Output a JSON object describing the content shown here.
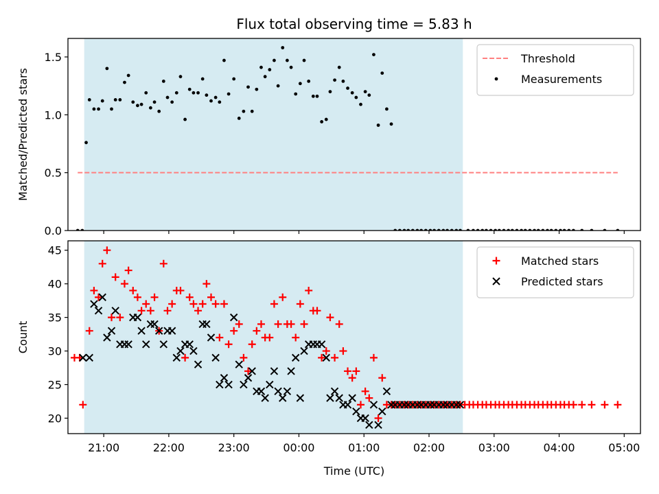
{
  "figure": {
    "title": "Flux total observing time = 5.83 h"
  },
  "chart_data": [
    {
      "type": "scatter",
      "panel": "top",
      "ylabel": "Matched/Predicted stars",
      "xlabel": "",
      "xlim": [
        20.45,
        29.25
      ],
      "ylim": [
        0.0,
        1.66
      ],
      "yticks": [
        0.0,
        0.5,
        1.0,
        1.5
      ],
      "ytick_labels": [
        "0.0",
        "0.5",
        "1.0",
        "1.5"
      ],
      "grid": false,
      "legend": {
        "placement": "top-right"
      },
      "shaded_span": {
        "from": 20.7,
        "to": 26.52,
        "color": "#add8e6"
      },
      "threshold": {
        "name": "Threshold",
        "y": 0.5,
        "x_from": 20.6,
        "x_to": 28.9,
        "color": "#ff8080"
      },
      "series": [
        {
          "name": "Measurements",
          "marker": "dot",
          "color": "#000000",
          "x": [
            20.6,
            20.67,
            20.73,
            20.78,
            20.85,
            20.92,
            20.98,
            21.05,
            21.12,
            21.18,
            21.25,
            21.32,
            21.38,
            21.45,
            21.52,
            21.58,
            21.65,
            21.72,
            21.78,
            21.85,
            21.92,
            21.98,
            22.05,
            22.12,
            22.18,
            22.25,
            22.32,
            22.38,
            22.45,
            22.52,
            22.58,
            22.65,
            22.72,
            22.78,
            22.85,
            22.92,
            23.0,
            23.08,
            23.15,
            23.22,
            23.28,
            23.35,
            23.42,
            23.48,
            23.55,
            23.62,
            23.68,
            23.75,
            23.82,
            23.88,
            23.95,
            24.02,
            24.08,
            24.15,
            24.22,
            24.28,
            24.35,
            24.42,
            24.48,
            24.55,
            24.62,
            24.68,
            24.75,
            24.82,
            24.88,
            24.95,
            25.02,
            25.08,
            25.15,
            25.22,
            25.28,
            25.35,
            25.42,
            25.48,
            25.55,
            25.62,
            25.68,
            25.75,
            25.82,
            25.88,
            25.95,
            26.02,
            26.08,
            26.15,
            26.22,
            26.28,
            26.35,
            26.42,
            26.48,
            26.6,
            26.68,
            26.75,
            26.82,
            26.88,
            26.95,
            27.02,
            27.08,
            27.15,
            27.22,
            27.28,
            27.35,
            27.42,
            27.48,
            27.55,
            27.62,
            27.68,
            27.75,
            27.82,
            27.88,
            27.95,
            28.02,
            28.08,
            28.15,
            28.22,
            28.35,
            28.5,
            28.7,
            28.9
          ],
          "y": [
            0.0,
            0.0,
            0.76,
            1.13,
            1.05,
            1.05,
            1.12,
            1.4,
            1.05,
            1.13,
            1.13,
            1.28,
            1.34,
            1.11,
            1.08,
            1.09,
            1.19,
            1.06,
            1.11,
            1.03,
            1.29,
            1.15,
            1.11,
            1.19,
            1.33,
            0.96,
            1.22,
            1.19,
            1.19,
            1.31,
            1.17,
            1.12,
            1.15,
            1.11,
            1.47,
            1.18,
            1.31,
            0.97,
            1.03,
            1.24,
            1.03,
            1.22,
            1.41,
            1.33,
            1.39,
            1.47,
            1.25,
            1.58,
            1.47,
            1.41,
            1.18,
            1.27,
            1.47,
            1.29,
            1.16,
            1.16,
            0.94,
            0.96,
            1.2,
            1.3,
            1.41,
            1.29,
            1.23,
            1.19,
            1.15,
            1.09,
            1.2,
            1.17,
            1.52,
            0.91,
            1.36,
            1.05,
            0.92,
            0.0,
            0.0,
            0.0,
            0.0,
            0.0,
            0.0,
            0.0,
            0.0,
            0.0,
            0.0,
            0.0,
            0.0,
            0.0,
            0.0,
            0.0,
            0.0,
            0.0,
            0.0,
            0.0,
            0.0,
            0.0,
            0.0,
            0.0,
            0.0,
            0.0,
            0.0,
            0.0,
            0.0,
            0.0,
            0.0,
            0.0,
            0.0,
            0.0,
            0.0,
            0.0,
            0.0,
            0.0,
            0.0,
            0.0,
            0.0,
            0.0,
            0.0,
            0.0,
            0.0,
            0.0
          ]
        }
      ]
    },
    {
      "type": "scatter",
      "panel": "bottom",
      "ylabel": "Count",
      "xlabel": "Time (UTC)",
      "xlim": [
        20.45,
        29.25
      ],
      "ylim": [
        17.7,
        46.4
      ],
      "yticks": [
        20,
        25,
        30,
        35,
        40,
        45
      ],
      "ytick_labels": [
        "20",
        "25",
        "30",
        "35",
        "40",
        "45"
      ],
      "xticks": [
        21,
        22,
        23,
        24,
        25,
        26,
        27,
        28,
        29
      ],
      "xtick_labels": [
        "21:00",
        "22:00",
        "23:00",
        "00:00",
        "01:00",
        "02:00",
        "03:00",
        "04:00",
        "05:00"
      ],
      "grid": false,
      "legend": {
        "placement": "top-right"
      },
      "shaded_span": {
        "from": 20.7,
        "to": 26.52,
        "color": "#add8e6"
      },
      "series": [
        {
          "name": "Matched stars",
          "marker": "plus",
          "color": "#ff0000",
          "x": [
            20.55,
            20.63,
            20.68,
            20.78,
            20.85,
            20.92,
            20.98,
            21.05,
            21.12,
            21.18,
            21.25,
            21.32,
            21.38,
            21.45,
            21.52,
            21.58,
            21.65,
            21.72,
            21.78,
            21.85,
            21.92,
            21.98,
            22.05,
            22.12,
            22.18,
            22.25,
            22.32,
            22.38,
            22.45,
            22.52,
            22.58,
            22.65,
            22.72,
            22.78,
            22.85,
            22.92,
            23.0,
            23.08,
            23.15,
            23.22,
            23.28,
            23.35,
            23.42,
            23.48,
            23.55,
            23.62,
            23.68,
            23.75,
            23.82,
            23.88,
            23.95,
            24.02,
            24.08,
            24.15,
            24.22,
            24.28,
            24.35,
            24.42,
            24.48,
            24.55,
            24.62,
            24.68,
            24.75,
            24.82,
            24.88,
            24.95,
            25.02,
            25.08,
            25.15,
            25.22,
            25.28,
            25.35,
            25.42,
            25.48,
            25.55,
            25.62,
            25.68,
            25.75,
            25.82,
            25.88,
            25.95,
            26.02,
            26.08,
            26.15,
            26.22,
            26.28,
            26.35,
            26.42,
            26.48,
            26.55,
            26.62,
            26.68,
            26.75,
            26.82,
            26.88,
            26.95,
            27.02,
            27.08,
            27.15,
            27.22,
            27.28,
            27.35,
            27.42,
            27.48,
            27.55,
            27.62,
            27.68,
            27.75,
            27.82,
            27.88,
            27.95,
            28.02,
            28.08,
            28.15,
            28.22,
            28.35,
            28.5,
            28.7,
            28.9
          ],
          "y": [
            29,
            29,
            22,
            33,
            39,
            38,
            43,
            45,
            35,
            41,
            35,
            40,
            42,
            39,
            38,
            36,
            37,
            36,
            38,
            33,
            43,
            36,
            37,
            39,
            39,
            29,
            38,
            37,
            36,
            37,
            40,
            38,
            37,
            32,
            37,
            31,
            33,
            34,
            29,
            27,
            31,
            33,
            34,
            32,
            32,
            37,
            34,
            38,
            34,
            34,
            32,
            37,
            34,
            39,
            36,
            36,
            29,
            30,
            35,
            29,
            34,
            30,
            27,
            26,
            27,
            22,
            24,
            23,
            29,
            20,
            26,
            22,
            22,
            22,
            22,
            22,
            22,
            22,
            22,
            22,
            22,
            22,
            22,
            22,
            22,
            22,
            22,
            22,
            22,
            22,
            22,
            22,
            22,
            22,
            22,
            22,
            22,
            22,
            22,
            22,
            22,
            22,
            22,
            22,
            22,
            22,
            22,
            22,
            22,
            22,
            22,
            22,
            22,
            22,
            22,
            22,
            22,
            22,
            22
          ]
        },
        {
          "name": "Predicted stars",
          "marker": "x",
          "color": "#000000",
          "x": [
            20.68,
            20.78,
            20.85,
            20.92,
            20.98,
            21.05,
            21.12,
            21.18,
            21.25,
            21.32,
            21.38,
            21.45,
            21.52,
            21.58,
            21.65,
            21.72,
            21.78,
            21.85,
            21.92,
            21.98,
            22.05,
            22.12,
            22.18,
            22.25,
            22.32,
            22.38,
            22.45,
            22.52,
            22.58,
            22.65,
            22.72,
            22.78,
            22.85,
            22.92,
            23.0,
            23.08,
            23.15,
            23.22,
            23.28,
            23.35,
            23.42,
            23.48,
            23.55,
            23.62,
            23.68,
            23.75,
            23.82,
            23.88,
            23.95,
            24.02,
            24.08,
            24.15,
            24.22,
            24.28,
            24.35,
            24.42,
            24.48,
            24.55,
            24.62,
            24.68,
            24.75,
            24.82,
            24.88,
            24.95,
            25.02,
            25.08,
            25.15,
            25.22,
            25.28,
            25.35,
            25.42,
            25.48,
            25.55,
            25.62,
            25.68,
            25.75,
            25.82,
            25.88,
            25.95,
            26.02,
            26.08,
            26.15,
            26.22,
            26.28,
            26.35,
            26.42,
            26.48
          ],
          "y": [
            29,
            29,
            37,
            36,
            38,
            32,
            33,
            36,
            31,
            31,
            31,
            35,
            35,
            33,
            31,
            34,
            34,
            33,
            31,
            33,
            33,
            29,
            30,
            31,
            31,
            30,
            28,
            34,
            34,
            32,
            29,
            25,
            26,
            25,
            35,
            28,
            25,
            26,
            27,
            24,
            24,
            23,
            25,
            27,
            24,
            23,
            24,
            27,
            29,
            23,
            30,
            31,
            31,
            31,
            31,
            29,
            23,
            24,
            23,
            22,
            22,
            23,
            21,
            20,
            20,
            19,
            22,
            19,
            21,
            24,
            22,
            22,
            22,
            22,
            22,
            22,
            22,
            22,
            22,
            22,
            22,
            22,
            22,
            22,
            22,
            22,
            22
          ]
        }
      ]
    }
  ]
}
